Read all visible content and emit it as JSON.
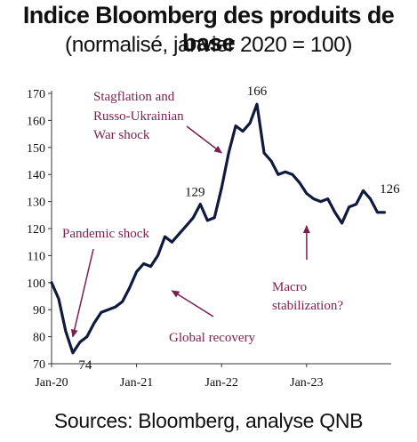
{
  "title": "Indice Bloomberg des produits de base",
  "subtitle": "(normalisé, janvier 2020 = 100)",
  "source": "Sources: Bloomberg, analyse QNB",
  "colors": {
    "line": "#0f1a3d",
    "annotation": "#7a1f4f",
    "axis": "#333333"
  },
  "chart_data": {
    "type": "line",
    "title": "Indice Bloomberg des produits de base",
    "xlabel": "",
    "ylabel": "",
    "ylim": [
      70,
      170
    ],
    "xlim": [
      "2020-01",
      "2023-12"
    ],
    "grid": false,
    "y_ticks": [
      "70",
      "80",
      "90",
      "100",
      "110",
      "120",
      "130",
      "140",
      "150",
      "160",
      "170"
    ],
    "x_ticks": [
      "Jan-20",
      "Jan-21",
      "Jan-22",
      "Jan-23"
    ],
    "series": [
      {
        "name": "",
        "x": [
          "2020-01",
          "2020-02",
          "2020-03",
          "2020-04",
          "2020-05",
          "2020-06",
          "2020-07",
          "2020-08",
          "2020-09",
          "2020-10",
          "2020-11",
          "2020-12",
          "2021-01",
          "2021-02",
          "2021-03",
          "2021-04",
          "2021-05",
          "2021-06",
          "2021-07",
          "2021-08",
          "2021-09",
          "2021-10",
          "2021-11",
          "2021-12",
          "2022-01",
          "2022-02",
          "2022-03",
          "2022-04",
          "2022-05",
          "2022-06",
          "2022-07",
          "2022-08",
          "2022-09",
          "2022-10",
          "2022-11",
          "2022-12",
          "2023-01",
          "2023-02",
          "2023-03",
          "2023-04",
          "2023-05",
          "2023-06",
          "2023-07",
          "2023-08",
          "2023-09",
          "2023-10",
          "2023-11",
          "2023-12"
        ],
        "values": [
          100,
          94,
          82,
          74,
          78,
          80,
          85,
          89,
          90,
          91,
          93,
          98,
          104,
          107,
          106,
          110,
          117,
          115,
          118,
          121,
          124,
          129,
          123,
          124,
          135,
          148,
          158,
          156,
          159,
          166,
          148,
          145,
          140,
          141,
          140,
          137,
          133,
          131,
          130,
          131,
          126,
          122,
          128,
          129,
          134,
          131,
          126,
          126
        ]
      }
    ],
    "data_labels": [
      {
        "x": "2020-04",
        "value": 74,
        "text": "74"
      },
      {
        "x": "2021-10",
        "value": 129,
        "text": "129"
      },
      {
        "x": "2022-06",
        "value": 166,
        "text": "166"
      },
      {
        "x": "2023-12",
        "value": 126,
        "text": "126"
      }
    ],
    "annotations": [
      {
        "text": "Pandemic shock",
        "arrow_to": {
          "x": "2020-04",
          "value": 80
        }
      },
      {
        "text": "Stagflation and",
        "arrow_to": {
          "x": "2022-01",
          "value": 148
        }
      },
      {
        "text": "Russo-Ukrainian",
        "arrow_to": null
      },
      {
        "text": "War shock",
        "arrow_to": null
      },
      {
        "text": "Global recovery",
        "arrow_to": {
          "x": "2021-06",
          "value": 97
        }
      },
      {
        "text": "Macro",
        "arrow_to": {
          "x": "2023-01",
          "value": 121
        }
      },
      {
        "text": "stabilization?",
        "arrow_to": null
      }
    ]
  }
}
